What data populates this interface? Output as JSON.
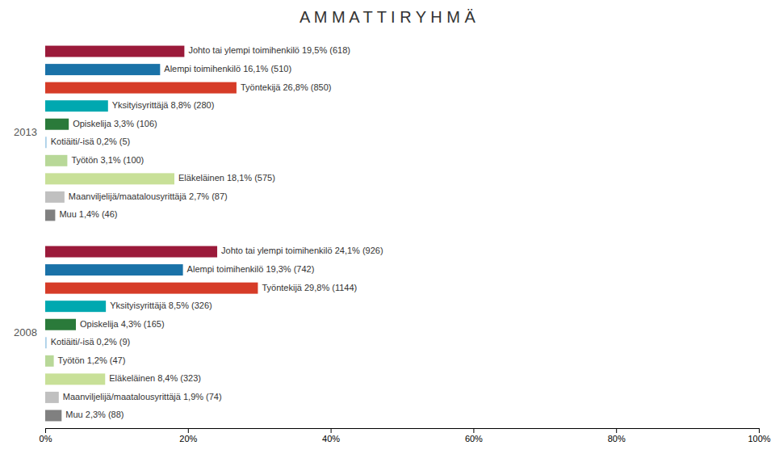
{
  "chart_data": {
    "type": "bar",
    "orientation": "horizontal",
    "title": "A M M A T T I R Y H M Ä",
    "categories": [
      null,
      null,
      null,
      null,
      null,
      null,
      null,
      null,
      null,
      null
    ],
    "colors": [
      "#9b1a3a",
      "#1a72a8",
      "#d63c28",
      "#00a8b0",
      "#2a7a3a",
      "#aad0e8",
      "#b8d898",
      "#c8e098",
      "#c0c0c0",
      "#808080"
    ],
    "series": [
      {
        "name": "2013",
        "values": [
          19.5,
          16.1,
          26.8,
          8.8,
          3.3,
          0.2,
          3.1,
          18.1,
          2.7,
          1.4
        ],
        "value_labels": [
          "Johto tai ylempi toimihenkilö 19,5% (618)",
          "Alempi toimihenkilö 16,1% (510)",
          "Työntekijä 26,8% (850)",
          "Yksityisyrittäjä 8,8% (280)",
          "Opiskelija 3,3% (106)",
          "Kotiäiti/-isä 0,2% (5)",
          "Työtön 3,1% (100)",
          "Eläkeläinen 18,1% (575)",
          "Maanviljelijä/maatalousyrittäjä 2,7% (87)",
          "Muu 1,4% (46)"
        ]
      },
      {
        "name": "2008",
        "values": [
          24.1,
          19.3,
          29.8,
          8.5,
          4.3,
          0.2,
          1.2,
          8.4,
          1.9,
          2.3
        ],
        "value_labels": [
          "Johto tai ylempi toimihenkilö 24,1% (926)",
          "Alempi toimihenkilö 19,3% (742)",
          "Työntekijä 29,8% (1144)",
          "Yksityisyrittäjä 8,5% (326)",
          "Opiskelija 4,3% (165)",
          "Kotiäiti/-isä 0,2% (9)",
          "Työtön 1,2% (47)",
          "Eläkeläinen 8,4% (323)",
          "Maanviljelijä/maatalousyrittäjä 1,9% (74)",
          "Muu 2,3% (88)"
        ]
      }
    ],
    "xlim": [
      0,
      100
    ],
    "xticks": [
      {
        "value": 0,
        "label": "0%"
      },
      {
        "value": 20,
        "label": "20%"
      },
      {
        "value": 40,
        "label": "40%"
      },
      {
        "value": 60,
        "label": "60%"
      },
      {
        "value": 80,
        "label": "80%"
      },
      {
        "value": 100,
        "label": "100%"
      }
    ],
    "data_labels": true,
    "grid": false,
    "tick_labels": "x"
  }
}
